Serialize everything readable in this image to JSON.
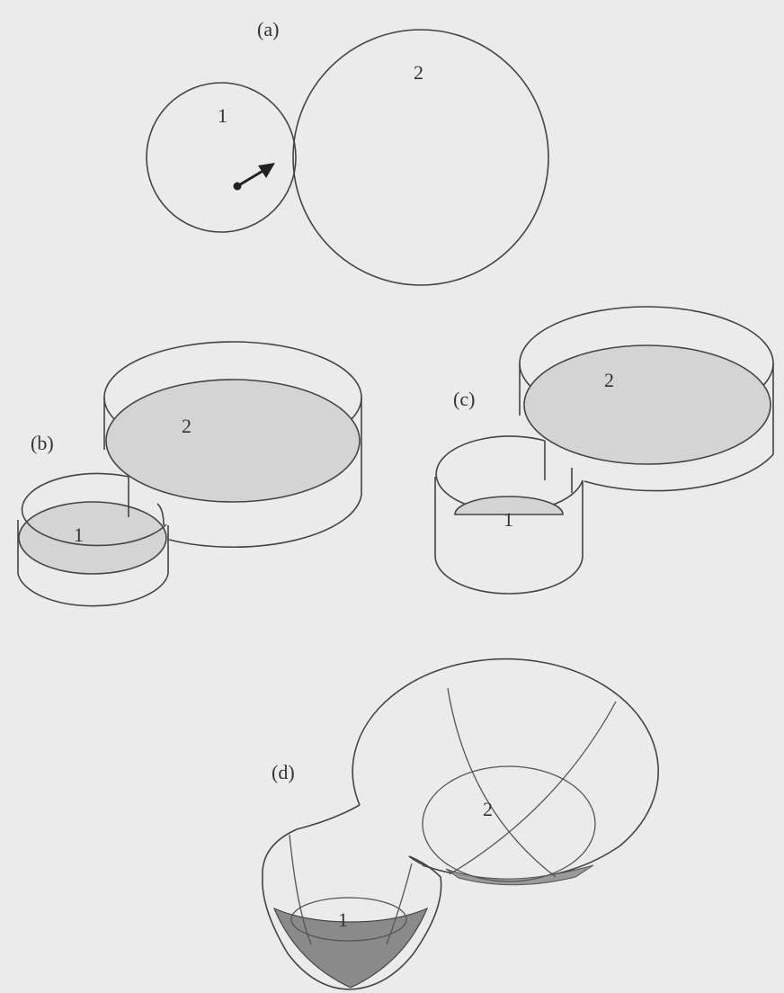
{
  "panels": {
    "a": {
      "tag": "(a)",
      "region1": "1",
      "region2": "2"
    },
    "b": {
      "tag": "(b)",
      "region1": "1",
      "region2": "2"
    },
    "c": {
      "tag": "(c)",
      "region1": "1",
      "region2": "2"
    },
    "d": {
      "tag": "(d)",
      "region1": "1",
      "region2": "2"
    }
  },
  "colors": {
    "background": "#ebebeb",
    "line": "#444444",
    "floor_fill": "#d4d4d4",
    "bowl_bottom_fill": "#8a8a8a"
  }
}
